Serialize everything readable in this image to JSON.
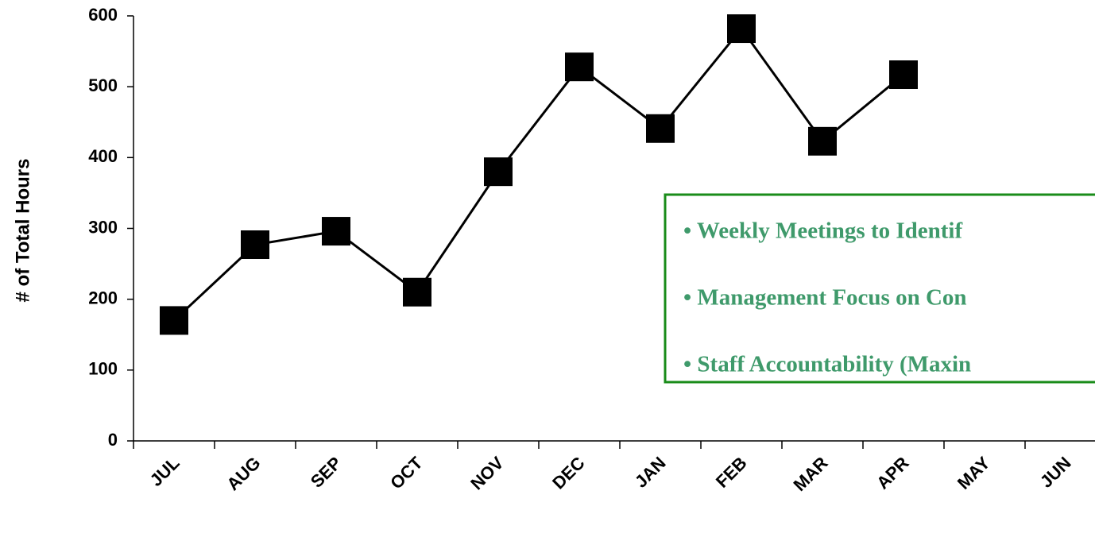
{
  "chart_data": {
    "type": "line",
    "y_label": "# of Total  Hours",
    "categories": [
      "JUL",
      "AUG",
      "SEP",
      "OCT",
      "NOV",
      "DEC",
      "JAN",
      "FEB",
      "MAR",
      "APR",
      "MAY",
      "JUN"
    ],
    "series": [
      {
        "color": "#000000",
        "values": [
          170,
          277,
          296,
          210,
          380,
          528,
          441,
          582,
          423,
          517,
          null,
          null
        ]
      }
    ],
    "ylim": [
      0,
      600
    ],
    "yticks": [
      0,
      100,
      200,
      300,
      400,
      500,
      600
    ],
    "annotations": [
      "• Weekly Meetings to Identif",
      "• Management Focus on Con",
      "• Staff Accountability (Maxin"
    ]
  }
}
